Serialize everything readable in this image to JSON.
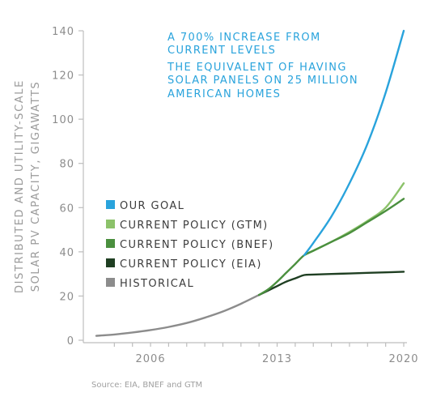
{
  "chart_data": {
    "type": "line",
    "title": "",
    "xlabel": "",
    "ylabel_lines": [
      "DISTRIBUTED AND UTILITY-SCALE",
      "SOLAR PV CAPACITY, GIGAWATTS"
    ],
    "xlim": [
      2003,
      2020
    ],
    "ylim": [
      0,
      140
    ],
    "x_ticks": [
      2006,
      2013,
      2020
    ],
    "x_minor_ticks": [
      2004,
      2005,
      2006,
      2007,
      2008,
      2009,
      2010,
      2011,
      2012,
      2013,
      2014,
      2015,
      2016,
      2017,
      2018,
      2019,
      2020
    ],
    "y_ticks": [
      0,
      20,
      40,
      60,
      80,
      100,
      120,
      140
    ],
    "grid": false,
    "legend_position": "center-left",
    "annotations": [
      "A 700% INCREASE FROM",
      "CURRENT LEVELS",
      "THE EQUIVALENT OF HAVING",
      "SOLAR PANELS ON 25 MILLION",
      "AMERICAN HOMES"
    ],
    "source": "Source: EIA, BNEF and GTM",
    "series": [
      {
        "name": "OUR GOAL",
        "color": "#29a3dc",
        "x": [
          2014.5,
          2015,
          2016,
          2017,
          2018,
          2019,
          2020
        ],
        "y": [
          38.5,
          44,
          56,
          71,
          89,
          112,
          140
        ]
      },
      {
        "name": "CURRENT POLICY (GTM)",
        "color": "#8cc26a",
        "x": [
          2014.5,
          2015,
          2016,
          2017,
          2018,
          2019,
          2020
        ],
        "y": [
          38.5,
          40.5,
          44.5,
          49,
          54,
          60,
          71
        ]
      },
      {
        "name": "CURRENT POLICY (BNEF)",
        "color": "#4a8f3e",
        "x": [
          2012,
          2012.5,
          2013,
          2013.5,
          2014,
          2014.5,
          2015,
          2016,
          2017,
          2018,
          2019,
          2020
        ],
        "y": [
          20.5,
          23,
          26.5,
          30.5,
          34.5,
          38.5,
          40.5,
          44.5,
          48.5,
          53.5,
          58.5,
          64
        ]
      },
      {
        "name": "CURRENT POLICY (EIA)",
        "color": "#1f3f22",
        "x": [
          2012,
          2012.5,
          2013,
          2013.5,
          2014,
          2014.5,
          2015,
          2016,
          2017,
          2018,
          2019,
          2020
        ],
        "y": [
          20.5,
          22.5,
          24.5,
          26.5,
          28,
          29.5,
          29.7,
          30,
          30.2,
          30.5,
          30.7,
          31
        ]
      },
      {
        "name": "HISTORICAL",
        "color": "#8c8c8c",
        "x": [
          2003,
          2004,
          2005,
          2006,
          2007,
          2008,
          2009,
          2010,
          2011,
          2012
        ],
        "y": [
          2,
          2.6,
          3.5,
          4.6,
          6,
          7.8,
          10.2,
          13,
          16.5,
          20.5
        ]
      }
    ]
  }
}
